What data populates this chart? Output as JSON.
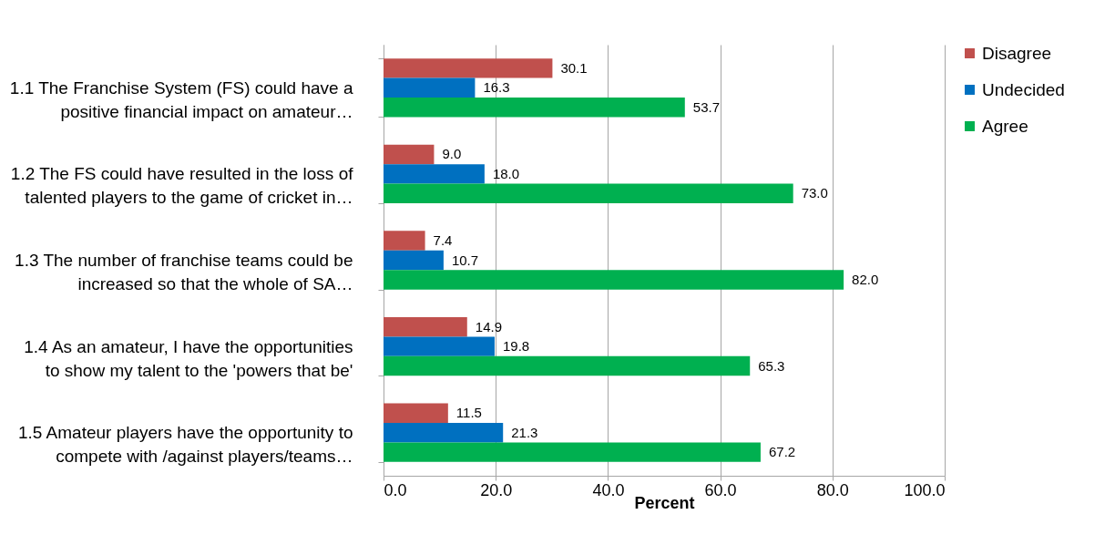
{
  "chart_data": {
    "type": "bar",
    "orientation": "horizontal",
    "xlabel": "Percent",
    "categories": [
      "1.1 The Franchise System (FS) could have a positive financial impact on amateur…",
      "1.2 The FS could have resulted in the loss of talented players to the game of cricket in…",
      "1.3 The number of franchise teams could be increased so that the whole of SA…",
      "1.4 As an amateur, I have the opportunities to show my talent to the 'powers that be'",
      "1.5 Amateur players have the opportunity to compete with /against players/teams…"
    ],
    "series": [
      {
        "name": "Disagree",
        "color": "#c0504d",
        "values": [
          30.1,
          9.0,
          7.4,
          14.9,
          11.5
        ],
        "value_labels": [
          "30.1",
          "9.0",
          "7.4",
          "14.9",
          "11.5"
        ]
      },
      {
        "name": "Undecided",
        "color": "#0070c0",
        "values": [
          16.3,
          18.0,
          10.7,
          19.8,
          21.3
        ],
        "value_labels": [
          "16.3",
          "18.0",
          "10.7",
          "19.8",
          "21.3"
        ]
      },
      {
        "name": "Agree",
        "color": "#00b050",
        "values": [
          53.7,
          73.0,
          82.0,
          65.3,
          67.2
        ],
        "value_labels": [
          "53.7",
          "73.0",
          "82.0",
          "65.3",
          "67.2"
        ]
      }
    ],
    "xlim": [
      0,
      100
    ],
    "xticks": [
      {
        "value": 0,
        "label": "0.0"
      },
      {
        "value": 20,
        "label": "20.0"
      },
      {
        "value": 40,
        "label": "40.0"
      },
      {
        "value": 60,
        "label": "60.0"
      },
      {
        "value": 80,
        "label": "80.0"
      },
      {
        "value": 100,
        "label": "100.0"
      }
    ],
    "grid": "x",
    "legend": "right"
  }
}
